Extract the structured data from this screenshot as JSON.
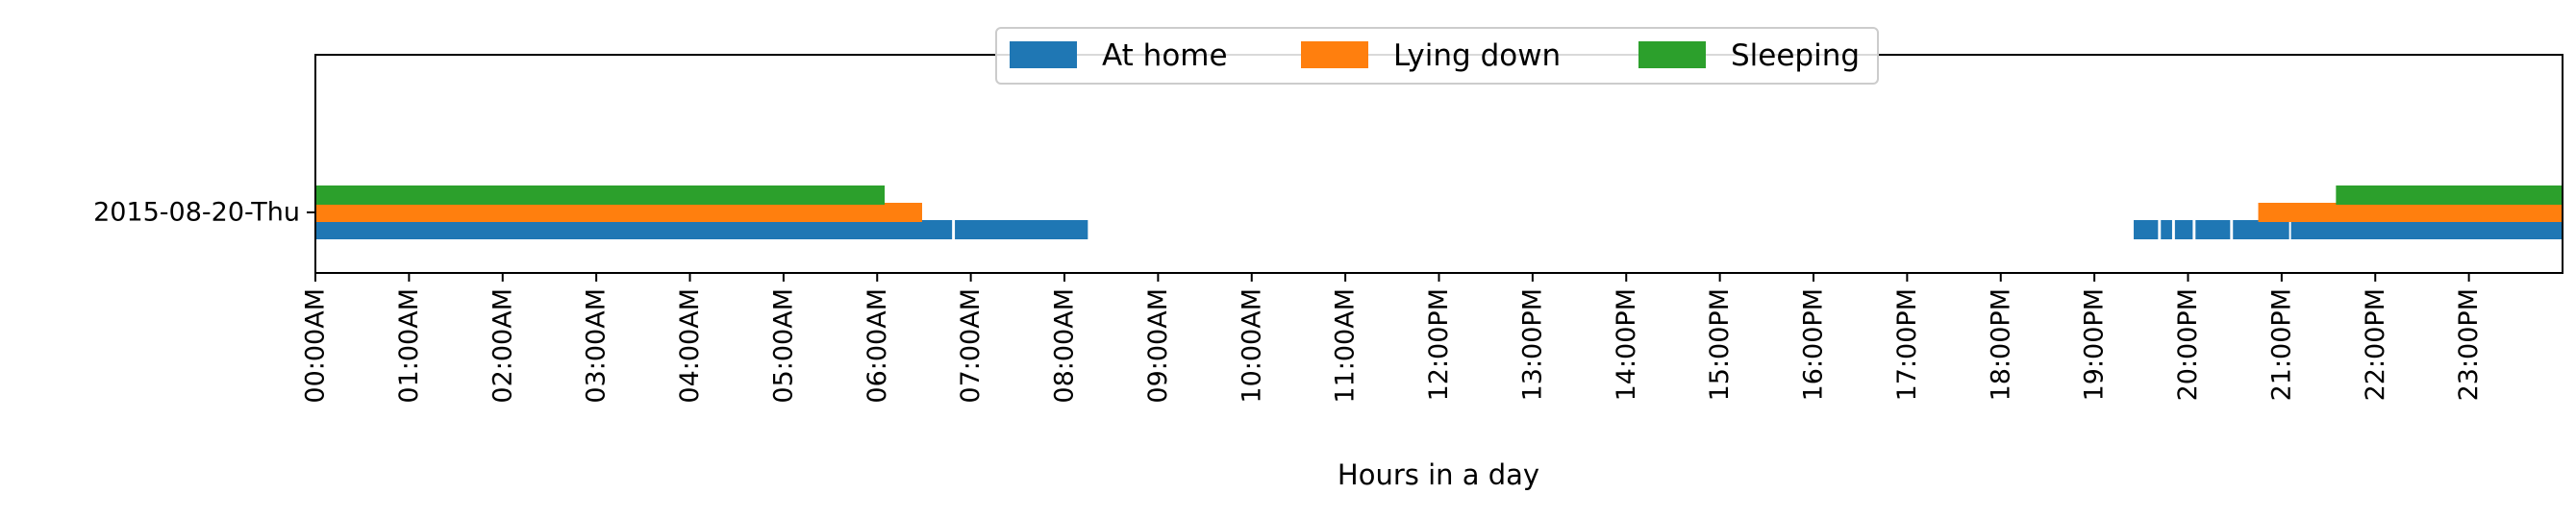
{
  "chart_data": {
    "type": "timeline",
    "xlabel": "Hours in a day",
    "ylabel": "",
    "title": "",
    "xlim": [
      0,
      24
    ],
    "grid": false,
    "legend_placement": "upper-center",
    "y_categories": [
      "2015-08-20-Thu"
    ],
    "x_ticks": [
      {
        "value": 0,
        "label": "00:00AM"
      },
      {
        "value": 1,
        "label": "01:00AM"
      },
      {
        "value": 2,
        "label": "02:00AM"
      },
      {
        "value": 3,
        "label": "03:00AM"
      },
      {
        "value": 4,
        "label": "04:00AM"
      },
      {
        "value": 5,
        "label": "05:00AM"
      },
      {
        "value": 6,
        "label": "06:00AM"
      },
      {
        "value": 7,
        "label": "07:00AM"
      },
      {
        "value": 8,
        "label": "08:00AM"
      },
      {
        "value": 9,
        "label": "09:00AM"
      },
      {
        "value": 10,
        "label": "10:00AM"
      },
      {
        "value": 11,
        "label": "11:00AM"
      },
      {
        "value": 12,
        "label": "12:00PM"
      },
      {
        "value": 13,
        "label": "13:00PM"
      },
      {
        "value": 14,
        "label": "14:00PM"
      },
      {
        "value": 15,
        "label": "15:00PM"
      },
      {
        "value": 16,
        "label": "16:00PM"
      },
      {
        "value": 17,
        "label": "17:00PM"
      },
      {
        "value": 18,
        "label": "18:00PM"
      },
      {
        "value": 19,
        "label": "19:00PM"
      },
      {
        "value": 20,
        "label": "20:00PM"
      },
      {
        "value": 21,
        "label": "21:00PM"
      },
      {
        "value": 22,
        "label": "22:00PM"
      },
      {
        "value": 23,
        "label": "23:00PM"
      }
    ],
    "series": [
      {
        "name": "At home",
        "color": "#1f77b4",
        "intervals": [
          {
            "day": "2015-08-20-Thu",
            "start": 0.0,
            "end": 6.8
          },
          {
            "day": "2015-08-20-Thu",
            "start": 6.83,
            "end": 8.25
          },
          {
            "day": "2015-08-20-Thu",
            "start": 19.42,
            "end": 19.68
          },
          {
            "day": "2015-08-20-Thu",
            "start": 19.71,
            "end": 19.83
          },
          {
            "day": "2015-08-20-Thu",
            "start": 19.86,
            "end": 20.05
          },
          {
            "day": "2015-08-20-Thu",
            "start": 20.08,
            "end": 20.45
          },
          {
            "day": "2015-08-20-Thu",
            "start": 20.48,
            "end": 21.08
          },
          {
            "day": "2015-08-20-Thu",
            "start": 21.1,
            "end": 24.0
          }
        ]
      },
      {
        "name": "Lying down",
        "color": "#ff7f0e",
        "intervals": [
          {
            "day": "2015-08-20-Thu",
            "start": 0.0,
            "end": 6.48
          },
          {
            "day": "2015-08-20-Thu",
            "start": 20.75,
            "end": 24.0
          }
        ]
      },
      {
        "name": "Sleeping",
        "color": "#2ca02c",
        "intervals": [
          {
            "day": "2015-08-20-Thu",
            "start": 0.0,
            "end": 6.08
          },
          {
            "day": "2015-08-20-Thu",
            "start": 21.58,
            "end": 24.0
          }
        ]
      }
    ]
  }
}
